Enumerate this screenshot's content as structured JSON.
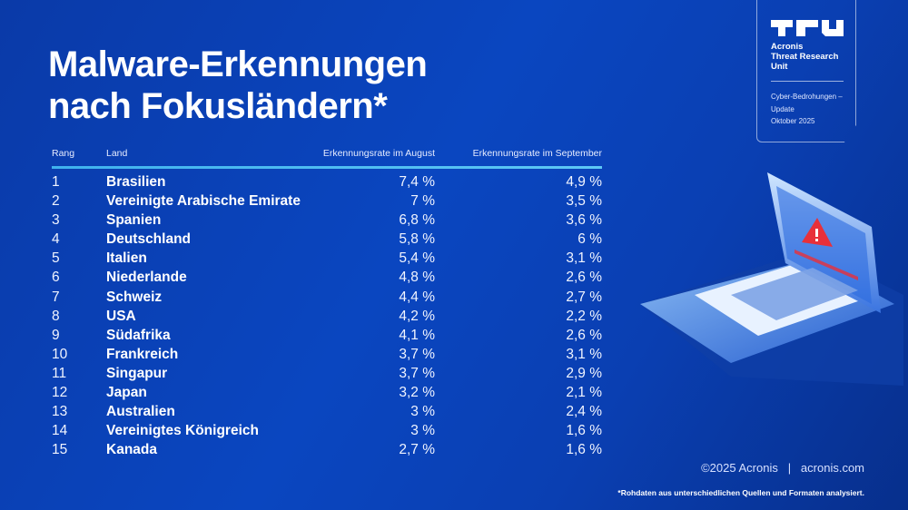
{
  "title_line1": "Malware-Erkennungen",
  "title_line2": "nach Fokusländern*",
  "badge": {
    "logo_text": "TRU",
    "name": [
      "Acronis",
      "Threat Research",
      "Unit"
    ],
    "subtitle": [
      "Cyber-Bedrohungen –",
      "Update",
      "Oktober 2025"
    ]
  },
  "footer": {
    "copyright": "©2025 Acronis",
    "separator": "|",
    "website": "acronis.com",
    "footnote": "*Rohdaten aus unterschiedlichen Quellen und Formaten analysiert."
  },
  "colors": {
    "background": "#0a46c0",
    "header_rule": "#4fbdf2",
    "warning": "#e8303a"
  },
  "chart_data": {
    "type": "table",
    "columns": [
      "Rang",
      "Land",
      "Erkennungsrate im August",
      "Erkennungsrate im September"
    ],
    "rows": [
      [
        "1",
        "Brasilien",
        "7,4 %",
        "4,9 %"
      ],
      [
        "2",
        "Vereinigte Arabische Emirate",
        "7 %",
        "3,5 %"
      ],
      [
        "3",
        "Spanien",
        "6,8 %",
        "3,6 %"
      ],
      [
        "4",
        "Deutschland",
        "5,8 %",
        "6 %"
      ],
      [
        "5",
        "Italien",
        "5,4 %",
        "3,1 %"
      ],
      [
        "6",
        "Niederlande",
        "4,8 %",
        "2,6 %"
      ],
      [
        "7",
        "Schweiz",
        "4,4 %",
        "2,7 %"
      ],
      [
        "8",
        "USA",
        "4,2 %",
        "2,2 %"
      ],
      [
        "9",
        "Südafrika",
        "4,1 %",
        "2,6 %"
      ],
      [
        "10",
        "Frankreich",
        "3,7 %",
        "3,1 %"
      ],
      [
        "11",
        "Singapur",
        "3,7 %",
        "2,9 %"
      ],
      [
        "12",
        "Japan",
        "3,2 %",
        "2,1 %"
      ],
      [
        "13",
        "Australien",
        "3 %",
        "2,4 %"
      ],
      [
        "14",
        "Vereinigtes Königreich",
        "3 %",
        "1,6 %"
      ],
      [
        "15",
        "Kanada",
        "2,7 %",
        "1,6 %"
      ]
    ]
  }
}
